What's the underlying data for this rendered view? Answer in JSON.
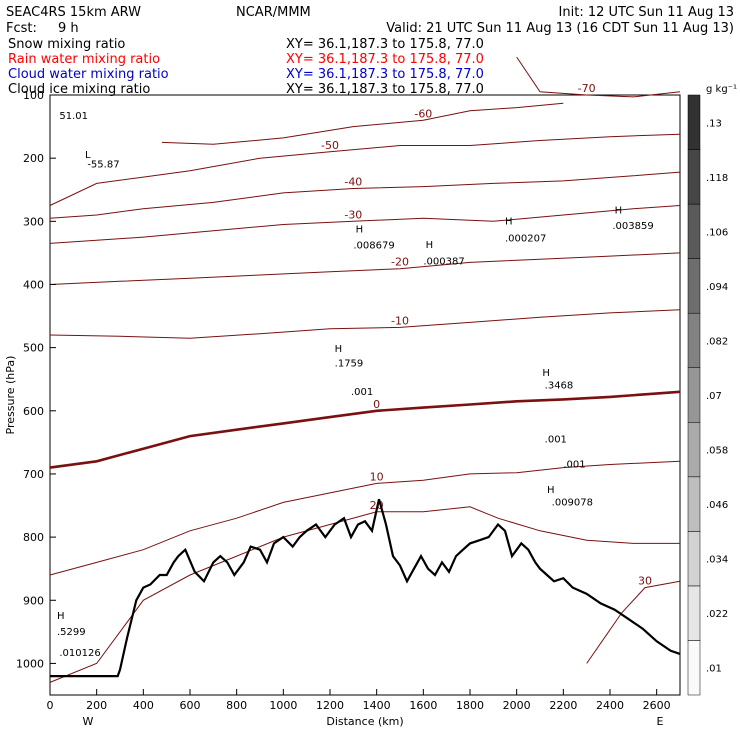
{
  "header": {
    "model": "SEAC4RS 15km ARW",
    "center": "NCAR/MMM",
    "init": "Init: 12 UTC Sun 11 Aug 13",
    "fcst_label": "Fcst:",
    "fcst_value": "9 h",
    "valid": "Valid: 21 UTC Sun 11 Aug 13 (16 CDT Sun 11 Aug 13)"
  },
  "fields": [
    {
      "name": "Snow mixing ratio",
      "color": "#000000",
      "xy": "XY=  36.1,187.3 to 175.8, 77.0"
    },
    {
      "name": "Rain water mixing ratio",
      "color": "#ff0000",
      "xy": "XY=  36.1,187.3 to 175.8, 77.0"
    },
    {
      "name": "Cloud water mixing ratio",
      "color": "#0000cc",
      "xy": "XY=  36.1,187.3 to 175.8, 77.0"
    },
    {
      "name": "Cloud ice mixing ratio",
      "color": "#000000",
      "xy": "XY=  36.1,187.3 to 175.8, 77.0"
    }
  ],
  "chart_data": {
    "type": "cross-section",
    "xlabel": "Distance (km)",
    "ylabel": "Pressure (hPa)",
    "xlim": [
      0,
      2700
    ],
    "ylim": [
      1050,
      100
    ],
    "x_ticks": [
      0,
      200,
      400,
      600,
      800,
      1000,
      1200,
      1400,
      1600,
      1800,
      2000,
      2200,
      2400,
      2600
    ],
    "y_ticks": [
      100,
      200,
      300,
      400,
      500,
      600,
      700,
      800,
      900,
      1000
    ],
    "end_labels": {
      "left": "W",
      "right": "E"
    },
    "colorbar": {
      "unit": "g kg⁻¹",
      "levels": [
        0.01,
        0.022,
        0.034,
        0.046,
        0.058,
        0.07,
        0.082,
        0.094,
        0.106,
        0.118,
        0.13
      ],
      "labels": [
        ".01",
        ".022",
        ".034",
        ".046",
        ".058",
        ".07",
        ".082",
        ".094",
        ".106",
        ".118",
        ".13"
      ]
    },
    "terrain": [
      [
        0,
        1020
      ],
      [
        290,
        1020
      ],
      [
        300,
        1010
      ],
      [
        330,
        960
      ],
      [
        370,
        900
      ],
      [
        400,
        880
      ],
      [
        430,
        875
      ],
      [
        470,
        860
      ],
      [
        500,
        860
      ],
      [
        530,
        840
      ],
      [
        550,
        830
      ],
      [
        580,
        820
      ],
      [
        620,
        855
      ],
      [
        660,
        870
      ],
      [
        700,
        840
      ],
      [
        730,
        830
      ],
      [
        760,
        840
      ],
      [
        790,
        860
      ],
      [
        830,
        840
      ],
      [
        860,
        815
      ],
      [
        900,
        820
      ],
      [
        930,
        840
      ],
      [
        960,
        810
      ],
      [
        1000,
        800
      ],
      [
        1040,
        815
      ],
      [
        1070,
        800
      ],
      [
        1100,
        790
      ],
      [
        1140,
        780
      ],
      [
        1180,
        800
      ],
      [
        1220,
        780
      ],
      [
        1260,
        770
      ],
      [
        1290,
        800
      ],
      [
        1320,
        780
      ],
      [
        1350,
        775
      ],
      [
        1380,
        790
      ],
      [
        1410,
        740
      ],
      [
        1440,
        780
      ],
      [
        1470,
        830
      ],
      [
        1500,
        845
      ],
      [
        1530,
        870
      ],
      [
        1560,
        850
      ],
      [
        1590,
        830
      ],
      [
        1620,
        850
      ],
      [
        1650,
        860
      ],
      [
        1680,
        840
      ],
      [
        1710,
        855
      ],
      [
        1740,
        830
      ],
      [
        1770,
        820
      ],
      [
        1800,
        810
      ],
      [
        1840,
        805
      ],
      [
        1880,
        800
      ],
      [
        1920,
        780
      ],
      [
        1950,
        790
      ],
      [
        1980,
        830
      ],
      [
        2000,
        820
      ],
      [
        2020,
        810
      ],
      [
        2050,
        820
      ],
      [
        2080,
        840
      ],
      [
        2100,
        850
      ],
      [
        2130,
        860
      ],
      [
        2160,
        870
      ],
      [
        2200,
        865
      ],
      [
        2240,
        880
      ],
      [
        2300,
        890
      ],
      [
        2360,
        905
      ],
      [
        2420,
        915
      ],
      [
        2480,
        930
      ],
      [
        2540,
        945
      ],
      [
        2600,
        965
      ],
      [
        2660,
        980
      ],
      [
        2700,
        985
      ]
    ],
    "isotherms": [
      {
        "label": "-70",
        "points": [
          [
            2000,
            40
          ],
          [
            2100,
            95
          ],
          [
            2300,
            100
          ],
          [
            2500,
            103
          ],
          [
            2700,
            95
          ]
        ]
      },
      {
        "label": "-60",
        "points": [
          [
            480,
            175
          ],
          [
            700,
            178
          ],
          [
            1000,
            168
          ],
          [
            1300,
            150
          ],
          [
            1600,
            140
          ],
          [
            1800,
            125
          ],
          [
            2000,
            120
          ],
          [
            2200,
            113
          ]
        ]
      },
      {
        "label": "-50",
        "points": [
          [
            0,
            275
          ],
          [
            200,
            240
          ],
          [
            400,
            230
          ],
          [
            600,
            220
          ],
          [
            900,
            200
          ],
          [
            1200,
            190
          ],
          [
            1500,
            180
          ],
          [
            1800,
            180
          ],
          [
            2100,
            172
          ],
          [
            2400,
            166
          ],
          [
            2700,
            162
          ]
        ]
      },
      {
        "label": "-40",
        "points": [
          [
            0,
            295
          ],
          [
            200,
            290
          ],
          [
            400,
            280
          ],
          [
            700,
            270
          ],
          [
            1000,
            255
          ],
          [
            1300,
            248
          ],
          [
            1600,
            245
          ],
          [
            1900,
            240
          ],
          [
            2200,
            236
          ],
          [
            2500,
            228
          ],
          [
            2700,
            222
          ]
        ]
      },
      {
        "label": "-30",
        "points": [
          [
            0,
            335
          ],
          [
            200,
            330
          ],
          [
            400,
            325
          ],
          [
            700,
            315
          ],
          [
            1000,
            305
          ],
          [
            1300,
            300
          ],
          [
            1600,
            295
          ],
          [
            1900,
            300
          ],
          [
            2200,
            290
          ],
          [
            2500,
            280
          ],
          [
            2700,
            275
          ]
        ]
      },
      {
        "label": "-20",
        "points": [
          [
            0,
            400
          ],
          [
            300,
            395
          ],
          [
            600,
            390
          ],
          [
            900,
            385
          ],
          [
            1200,
            380
          ],
          [
            1500,
            375
          ],
          [
            1800,
            365
          ],
          [
            2100,
            360
          ],
          [
            2400,
            355
          ],
          [
            2700,
            350
          ]
        ]
      },
      {
        "label": "-10",
        "points": [
          [
            0,
            480
          ],
          [
            300,
            482
          ],
          [
            600,
            485
          ],
          [
            900,
            478
          ],
          [
            1200,
            470
          ],
          [
            1500,
            468
          ],
          [
            1800,
            460
          ],
          [
            2100,
            452
          ],
          [
            2400,
            445
          ],
          [
            2700,
            440
          ]
        ]
      },
      {
        "label": "0",
        "points": [
          [
            0,
            690
          ],
          [
            200,
            680
          ],
          [
            400,
            660
          ],
          [
            600,
            640
          ],
          [
            800,
            630
          ],
          [
            1000,
            620
          ],
          [
            1200,
            610
          ],
          [
            1400,
            600
          ],
          [
            1600,
            595
          ],
          [
            1800,
            590
          ],
          [
            2000,
            585
          ],
          [
            2200,
            582
          ],
          [
            2400,
            578
          ],
          [
            2700,
            570
          ]
        ]
      },
      {
        "label": "10",
        "points": [
          [
            0,
            860
          ],
          [
            200,
            840
          ],
          [
            400,
            820
          ],
          [
            600,
            790
          ],
          [
            800,
            770
          ],
          [
            1000,
            745
          ],
          [
            1200,
            730
          ],
          [
            1400,
            715
          ],
          [
            1600,
            710
          ],
          [
            1800,
            700
          ],
          [
            2000,
            698
          ],
          [
            2200,
            690
          ],
          [
            2400,
            685
          ],
          [
            2700,
            680
          ]
        ]
      },
      {
        "label": "20",
        "points": [
          [
            0,
            1030
          ],
          [
            200,
            1000
          ],
          [
            400,
            900
          ],
          [
            600,
            860
          ],
          [
            800,
            830
          ],
          [
            1000,
            800
          ],
          [
            1200,
            780
          ],
          [
            1400,
            760
          ],
          [
            1600,
            760
          ],
          [
            1800,
            752
          ],
          [
            1920,
            770
          ],
          [
            2100,
            790
          ],
          [
            2300,
            805
          ],
          [
            2500,
            810
          ],
          [
            2700,
            810
          ]
        ]
      },
      {
        "label": "30",
        "points": [
          [
            2300,
            1000
          ],
          [
            2450,
            920
          ],
          [
            2550,
            880
          ],
          [
            2700,
            870
          ]
        ]
      }
    ],
    "extrema_labels": [
      {
        "text": "L",
        "x": 150,
        "y": 200
      },
      {
        "text": "-55.87",
        "x": 160,
        "y": 215
      },
      {
        "text": "51.01",
        "x": 40,
        "y": 138
      },
      {
        "text": "H",
        "x": 1310,
        "y": 318
      },
      {
        "text": ".008679",
        "x": 1300,
        "y": 343
      },
      {
        "text": "H",
        "x": 1610,
        "y": 342
      },
      {
        "text": ".000387",
        "x": 1600,
        "y": 368
      },
      {
        "text": "H",
        "x": 1950,
        "y": 305
      },
      {
        "text": ".000207",
        "x": 1950,
        "y": 332
      },
      {
        "text": "H",
        "x": 2420,
        "y": 288
      },
      {
        "text": ".003859",
        "x": 2410,
        "y": 312
      },
      {
        "text": "H",
        "x": 1220,
        "y": 507
      },
      {
        "text": ".1759",
        "x": 1220,
        "y": 530
      },
      {
        "text": ".001",
        "x": 1290,
        "y": 575
      },
      {
        "text": "H",
        "x": 2110,
        "y": 545
      },
      {
        "text": ".3468",
        "x": 2120,
        "y": 565
      },
      {
        "text": ".001",
        "x": 2120,
        "y": 650
      },
      {
        "text": ".001",
        "x": 2200,
        "y": 690
      },
      {
        "text": "H",
        "x": 2130,
        "y": 730
      },
      {
        "text": ".009078",
        "x": 2150,
        "y": 750
      },
      {
        "text": "H",
        "x": 30,
        "y": 930
      },
      {
        "text": ".5299",
        "x": 30,
        "y": 955
      },
      {
        "text": ".010126",
        "x": 40,
        "y": 988
      }
    ]
  }
}
